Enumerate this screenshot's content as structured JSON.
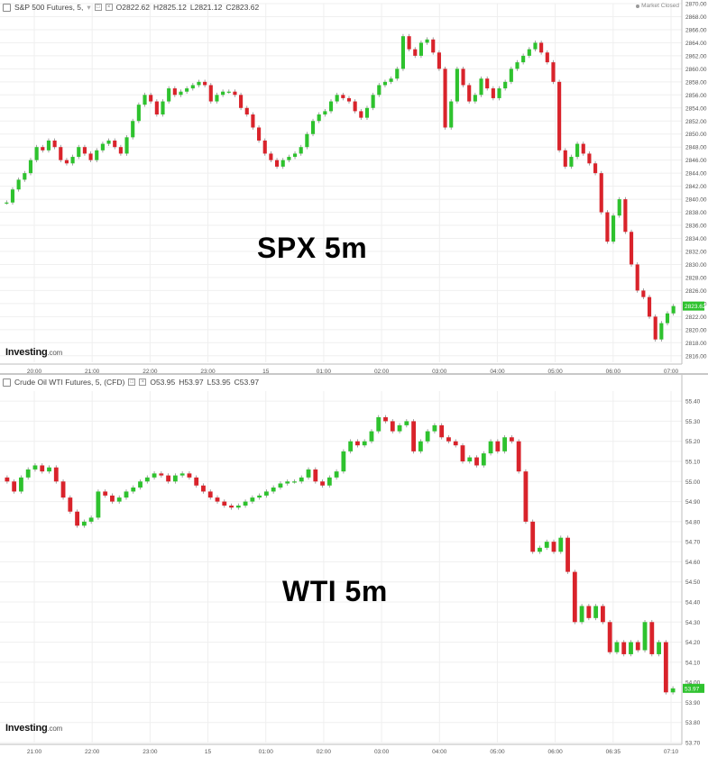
{
  "panels": {
    "spx": {
      "header": {
        "title": "S&P 500 Futures, 5,",
        "open": "O2822.62",
        "high": "H2825.12",
        "low": "L2821.12",
        "close": "C2823.62"
      },
      "market_status": "Market Closed",
      "overlay_label": "SPX 5m",
      "logo_main": "Investing",
      "logo_suffix": ".com",
      "last_price_label": "2823.62"
    },
    "wti": {
      "header": {
        "title": "Crude Oil WTI Futures, 5, (CFD)",
        "open": "O53.95",
        "high": "H53.97",
        "low": "L53.95",
        "close": "C53.97"
      },
      "overlay_label": "WTI 5m",
      "logo_main": "Investing",
      "logo_suffix": ".com",
      "last_price_label": "53.97"
    }
  },
  "colors": {
    "up": "#2ec22e",
    "down": "#d9232b",
    "last_price": "#2ec22e",
    "grid": "#efefef"
  },
  "chart_data": [
    {
      "type": "candlestick",
      "title": "S&P 500 Futures, 5,",
      "ylim": [
        2815,
        2870
      ],
      "y_ticks": [
        "2816.00",
        "2818.00",
        "2820.00",
        "2822.00",
        "2824.00",
        "2826.00",
        "2828.00",
        "2830.00",
        "2832.00",
        "2834.00",
        "2836.00",
        "2838.00",
        "2840.00",
        "2842.00",
        "2844.00",
        "2846.00",
        "2848.00",
        "2850.00",
        "2852.00",
        "2854.00",
        "2856.00",
        "2858.00",
        "2860.00",
        "2862.00",
        "2864.00",
        "2866.00",
        "2868.00",
        "2870.00"
      ],
      "x_ticks": [
        "20:00",
        "21:00",
        "22:00",
        "23:00",
        "15",
        "01:00",
        "02:00",
        "03:00",
        "04:00",
        "05:00",
        "06:00",
        "07:00"
      ],
      "grid": true,
      "closes": [
        2839.5,
        2841.5,
        2843,
        2844,
        2846,
        2848,
        2847.5,
        2849,
        2848,
        2846,
        2845.5,
        2846.5,
        2848,
        2847,
        2846,
        2847.5,
        2848.5,
        2849,
        2848,
        2847,
        2849.5,
        2852,
        2854.5,
        2856,
        2855,
        2853,
        2855,
        2857,
        2856,
        2856.5,
        2857,
        2857.5,
        2858,
        2857.5,
        2855,
        2856,
        2856.5,
        2856.5,
        2856,
        2854,
        2853,
        2851,
        2849,
        2847,
        2846,
        2845,
        2846,
        2846.5,
        2847,
        2848,
        2850,
        2852,
        2853,
        2853.5,
        2855,
        2856,
        2855.5,
        2855,
        2853.5,
        2852.5,
        2854,
        2856,
        2857.5,
        2858,
        2858.5,
        2860,
        2865,
        2863,
        2862,
        2864,
        2864.5,
        2862.5,
        2860,
        2851,
        2855,
        2860,
        2857.5,
        2855,
        2856,
        2858.5,
        2857,
        2855.5,
        2857,
        2858,
        2860,
        2861,
        2862,
        2863,
        2864,
        2862.5,
        2861,
        2858,
        2847.5,
        2845,
        2846.5,
        2848.5,
        2847,
        2845.5,
        2844,
        2838,
        2833.5,
        2837.5,
        2840,
        2835,
        2830,
        2826,
        2825,
        2822,
        2818.5,
        2821,
        2822.5,
        2823.62
      ],
      "open_first": 2839.5
    },
    {
      "type": "candlestick",
      "title": "Crude Oil WTI Futures, 5, (CFD)",
      "ylim": [
        53.7,
        55.45
      ],
      "y_ticks": [
        "53.70",
        "53.80",
        "53.90",
        "54.00",
        "54.10",
        "54.20",
        "54.30",
        "54.40",
        "54.50",
        "54.60",
        "54.70",
        "54.80",
        "54.90",
        "55.00",
        "55.10",
        "55.20",
        "55.30",
        "55.40"
      ],
      "x_ticks": [
        "21:00",
        "22:00",
        "23:00",
        "15",
        "01:00",
        "02:00",
        "03:00",
        "04:00",
        "05:00",
        "06:00",
        "06:35",
        "07:10"
      ],
      "grid": true,
      "closes": [
        55.0,
        54.95,
        55.02,
        55.06,
        55.08,
        55.05,
        55.07,
        55.0,
        54.92,
        54.85,
        54.78,
        54.8,
        54.82,
        54.95,
        54.93,
        54.9,
        54.92,
        54.95,
        54.97,
        55.0,
        55.02,
        55.04,
        55.03,
        55.0,
        55.03,
        55.04,
        55.02,
        54.98,
        54.95,
        54.92,
        54.9,
        54.88,
        54.87,
        54.88,
        54.9,
        54.92,
        54.93,
        54.95,
        54.97,
        54.99,
        55.0,
        55.0,
        55.02,
        55.06,
        55.0,
        54.98,
        55.02,
        55.05,
        55.15,
        55.2,
        55.18,
        55.2,
        55.25,
        55.32,
        55.3,
        55.25,
        55.28,
        55.3,
        55.15,
        55.2,
        55.25,
        55.28,
        55.22,
        55.2,
        55.18,
        55.1,
        55.12,
        55.08,
        55.14,
        55.2,
        55.15,
        55.22,
        55.2,
        55.05,
        54.8,
        54.65,
        54.67,
        54.7,
        54.65,
        54.72,
        54.55,
        54.3,
        54.38,
        54.32,
        54.38,
        54.3,
        54.15,
        54.2,
        54.14,
        54.2,
        54.16,
        54.3,
        54.14,
        54.2,
        53.95,
        53.97
      ],
      "open_first": 55.02
    }
  ]
}
